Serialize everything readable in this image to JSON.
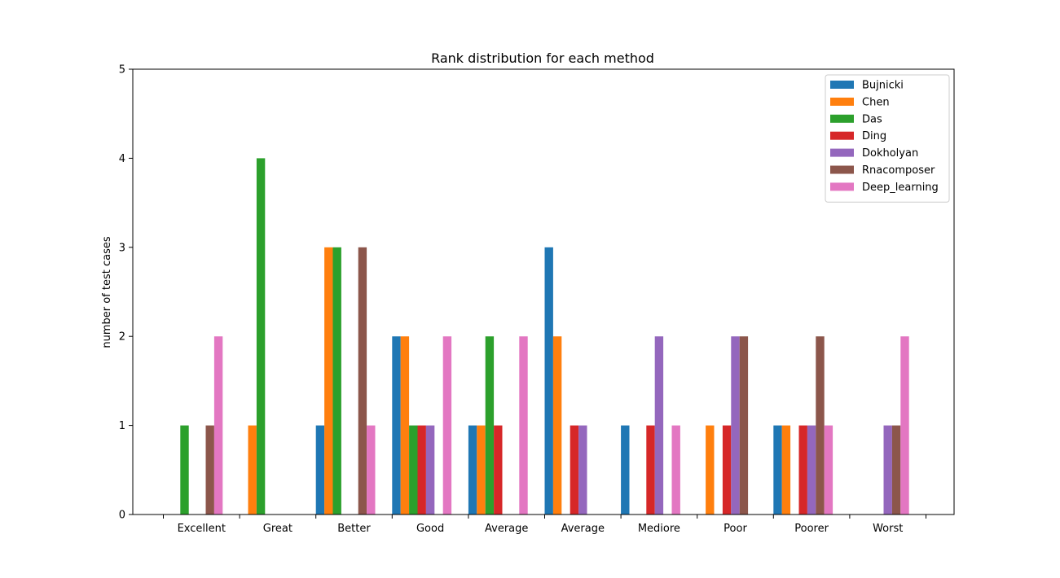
{
  "chart_data": {
    "type": "bar",
    "title": "Rank distribution for each method",
    "xlabel": "",
    "ylabel": "number of test cases",
    "ylim": [
      0,
      5
    ],
    "yticks": [
      0,
      1,
      2,
      3,
      4,
      5
    ],
    "categories": [
      "Excellent",
      "Great",
      "Better",
      "Good",
      "Average",
      "Average",
      "Mediore",
      "Poor",
      "Poorer",
      "Worst"
    ],
    "grid": false,
    "legend_position": "top-right",
    "series": [
      {
        "name": "Bujnicki",
        "color": "#1f77b4",
        "values": [
          0,
          0,
          1,
          2,
          1,
          3,
          1,
          0,
          1,
          0
        ]
      },
      {
        "name": "Chen",
        "color": "#ff7f0e",
        "values": [
          0,
          1,
          3,
          2,
          1,
          2,
          0,
          1,
          1,
          0
        ]
      },
      {
        "name": "Das",
        "color": "#2ca02c",
        "values": [
          1,
          4,
          3,
          1,
          2,
          0,
          0,
          0,
          0,
          0
        ]
      },
      {
        "name": "Ding",
        "color": "#d62728",
        "values": [
          0,
          0,
          0,
          1,
          1,
          1,
          1,
          1,
          1,
          0
        ]
      },
      {
        "name": "Dokholyan",
        "color": "#9467bd",
        "values": [
          0,
          0,
          0,
          1,
          0,
          1,
          2,
          2,
          1,
          1
        ]
      },
      {
        "name": "Rnacomposer",
        "color": "#8c564b",
        "values": [
          1,
          0,
          3,
          0,
          0,
          0,
          0,
          2,
          2,
          1
        ]
      },
      {
        "name": "Deep_learning",
        "color": "#e377c2",
        "values": [
          2,
          0,
          1,
          2,
          2,
          0,
          1,
          0,
          1,
          2
        ]
      }
    ]
  }
}
